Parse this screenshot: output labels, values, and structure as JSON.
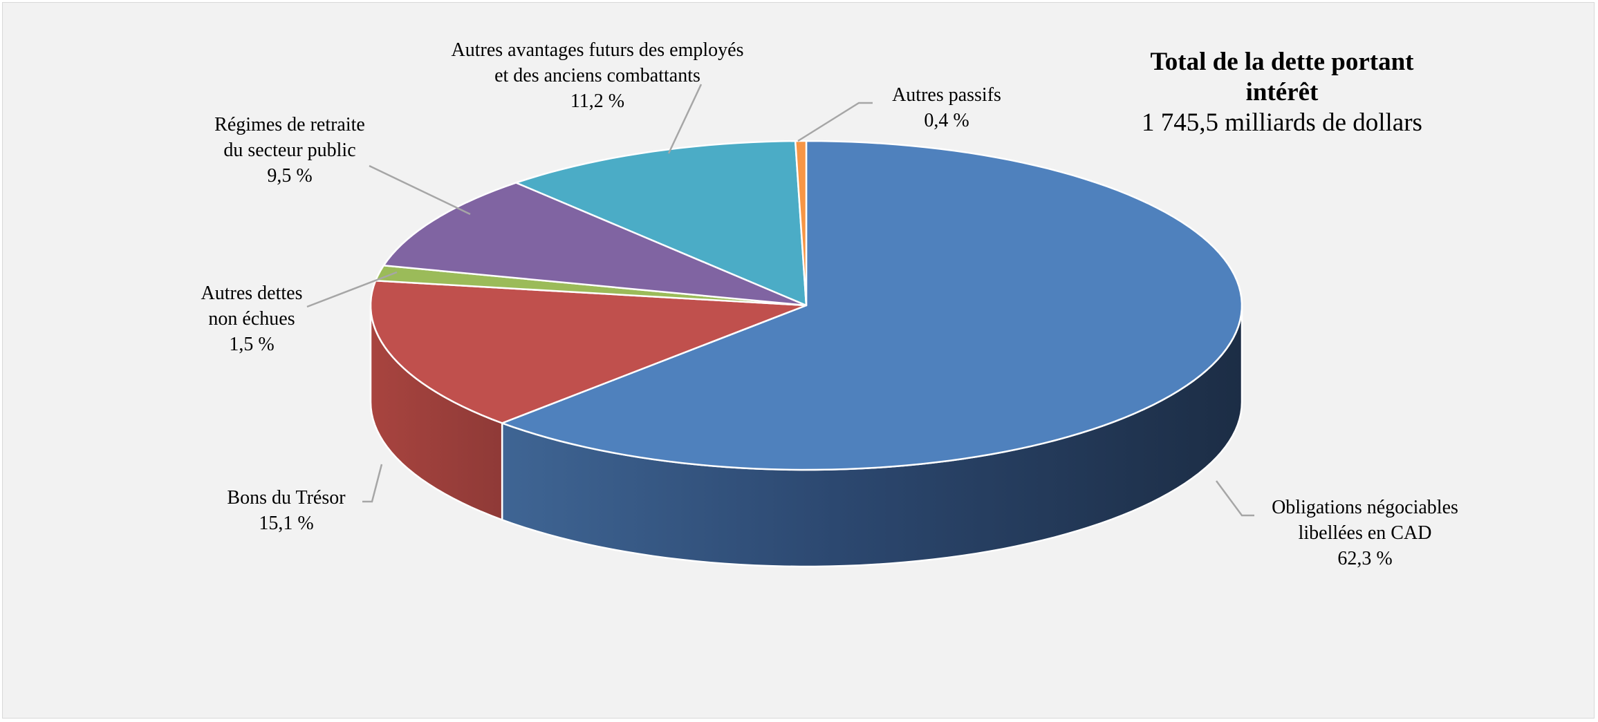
{
  "chart_data": {
    "type": "pie",
    "title": "Total de la dette portant intérêt",
    "subtitle": "1 745,5 milliards de dollars",
    "slices": [
      {
        "id": "obligations",
        "label_lines": [
          "Obligations négociables",
          "libellées en CAD"
        ],
        "value": 62.3,
        "value_label": "62,3 %",
        "color": "#4f81bd",
        "side_color": "#1e3049"
      },
      {
        "id": "bons",
        "label_lines": [
          "Bons du Trésor"
        ],
        "value": 15.1,
        "value_label": "15,1 %",
        "color": "#c0504d",
        "side_color": "#8c3836"
      },
      {
        "id": "autres-dettes",
        "label_lines": [
          "Autres dettes",
          "non échues"
        ],
        "value": 1.5,
        "value_label": "1,5 %",
        "color": "#9bbb59",
        "side_color": "#6f873f"
      },
      {
        "id": "regimes",
        "label_lines": [
          "Régimes de retraite",
          "du secteur public"
        ],
        "value": 9.5,
        "value_label": "9,5 %",
        "color": "#8064a2",
        "side_color": "#5a4673"
      },
      {
        "id": "avantages",
        "label_lines": [
          "Autres avantages futurs des employés",
          "et des anciens combattants"
        ],
        "value": 11.2,
        "value_label": "11,2 %",
        "color": "#4bacc6",
        "side_color": "#33788a"
      },
      {
        "id": "passifs",
        "label_lines": [
          "Autres passifs"
        ],
        "value": 0.4,
        "value_label": "0,4 %",
        "color": "#f79646",
        "side_color": "#b06a30"
      }
    ],
    "legend": "none"
  }
}
